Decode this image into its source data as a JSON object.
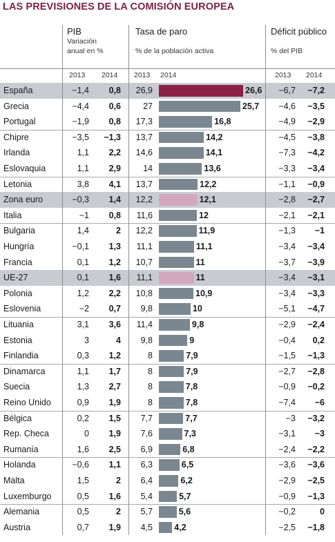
{
  "title": "LAS PREVISIONES DE LA COMISIÓN EUROPEA",
  "headers": {
    "pib": "PIB",
    "pib_sub1": "Variación",
    "pib_sub2": "anual en %",
    "paro": "Tasa de paro",
    "paro_sub": "% de la población activa",
    "deficit": "Déficit público",
    "deficit_sub": "% del PIB",
    "years": [
      "2013",
      "2014"
    ]
  },
  "colors": {
    "title": "#7a1f45",
    "bar_default": "#7a8790",
    "bar_spain": "#8b2045",
    "bar_aggregate": "#d3a8bd",
    "highlight_row": "#c8ccd1"
  },
  "chart_data": {
    "type": "table",
    "title": "LAS PREVISIONES DE LA COMISIÓN EUROPEA",
    "columns": [
      "PIB 2013",
      "PIB 2014",
      "Tasa de paro 2013",
      "Tasa de paro 2014",
      "Déficit público 2013",
      "Déficit público 2014"
    ],
    "bar_column": "Tasa de paro 2014",
    "rows": [
      {
        "country": "España",
        "pib13": "−1,4",
        "pib14": "0,8",
        "paro13": "26,9",
        "paro14": 26.6,
        "paro14_label": "26,6",
        "def13": "−6,7",
        "def14": "−7,2",
        "highlight": true,
        "bar": "spain"
      },
      {
        "country": "Grecia",
        "pib13": "−4,4",
        "pib14": "0,6",
        "paro13": "27",
        "paro14": 25.7,
        "paro14_label": "25,7",
        "def13": "−4,6",
        "def14": "−3,5"
      },
      {
        "country": "Portugal",
        "pib13": "−1,9",
        "pib14": "0,8",
        "paro13": "17,3",
        "paro14": 16.8,
        "paro14_label": "16,8",
        "def13": "−4,9",
        "def14": "−2,9",
        "group_end": true
      },
      {
        "country": "Chipre",
        "pib13": "−3,5",
        "pib14": "−1,3",
        "paro13": "13,7",
        "paro14": 14.2,
        "paro14_label": "14,2",
        "def13": "−4,5",
        "def14": "−3,8"
      },
      {
        "country": "Irlanda",
        "pib13": "1,1",
        "pib14": "2,2",
        "paro13": "14,6",
        "paro14": 14.1,
        "paro14_label": "14,1",
        "def13": "−7,3",
        "def14": "−4,2"
      },
      {
        "country": "Eslovaquia",
        "pib13": "1,1",
        "pib14": "2,9",
        "paro13": "14",
        "paro14": 13.6,
        "paro14_label": "13,6",
        "def13": "−3,3",
        "def14": "−3,4",
        "group_end": true
      },
      {
        "country": "Letonia",
        "pib13": "3,8",
        "pib14": "4,1",
        "paro13": "13,7",
        "paro14": 12.2,
        "paro14_label": "12,2",
        "def13": "−1,1",
        "def14": "−0,9"
      },
      {
        "country": "Zona euro",
        "pib13": "−0,3",
        "pib14": "1,4",
        "paro13": "12,2",
        "paro14": 12.1,
        "paro14_label": "12,1",
        "def13": "−2,8",
        "def14": "−2,7",
        "highlight": true,
        "bar": "pink"
      },
      {
        "country": "Italia",
        "pib13": "−1",
        "pib14": "0,8",
        "paro13": "11,6",
        "paro14": 12,
        "paro14_label": "12",
        "def13": "−2,1",
        "def14": "−2,1",
        "group_end": true
      },
      {
        "country": "Bulgaria",
        "pib13": "1,4",
        "pib14": "2",
        "paro13": "12,2",
        "paro14": 11.9,
        "paro14_label": "11,9",
        "def13": "−1,3",
        "def14": "−1"
      },
      {
        "country": "Hungría",
        "pib13": "−0,1",
        "pib14": "1,3",
        "paro13": "11,1",
        "paro14": 11.1,
        "paro14_label": "11,1",
        "def13": "−3,4",
        "def14": "−3,4"
      },
      {
        "country": "Francia",
        "pib13": "0,1",
        "pib14": "1,2",
        "paro13": "10,7",
        "paro14": 11,
        "paro14_label": "11",
        "def13": "−3,7",
        "def14": "−3,9",
        "group_end": true
      },
      {
        "country": "UE-27",
        "pib13": "0,1",
        "pib14": "1,6",
        "paro13": "11,1",
        "paro14": 11,
        "paro14_label": "11",
        "def13": "−3,4",
        "def14": "−3,1",
        "highlight": true,
        "bar": "pink"
      },
      {
        "country": "Polonia",
        "pib13": "1,2",
        "pib14": "2,2",
        "paro13": "10,8",
        "paro14": 10.9,
        "paro14_label": "10,9",
        "def13": "−3,4",
        "def14": "−3,3"
      },
      {
        "country": "Eslovenia",
        "pib13": "−2",
        "pib14": "0,7",
        "paro13": "9,8",
        "paro14": 10,
        "paro14_label": "10",
        "def13": "−5,1",
        "def14": "−4,7",
        "group_end": true
      },
      {
        "country": "Lituania",
        "pib13": "3,1",
        "pib14": "3,6",
        "paro13": "11,4",
        "paro14": 9.8,
        "paro14_label": "9,8",
        "def13": "−2,9",
        "def14": "−2,4"
      },
      {
        "country": "Estonia",
        "pib13": "3",
        "pib14": "4",
        "paro13": "9,8",
        "paro14": 9,
        "paro14_label": "9",
        "def13": "−0,4",
        "def14": "0,2"
      },
      {
        "country": "Finlandia",
        "pib13": "0,3",
        "pib14": "1,2",
        "paro13": "8",
        "paro14": 7.9,
        "paro14_label": "7,9",
        "def13": "−1,5",
        "def14": "−1,3",
        "group_end": true
      },
      {
        "country": "Dinamarca",
        "pib13": "1,1",
        "pib14": "1,7",
        "paro13": "8",
        "paro14": 7.9,
        "paro14_label": "7,9",
        "def13": "−2,7",
        "def14": "−2,8"
      },
      {
        "country": "Suecia",
        "pib13": "1,3",
        "pib14": "2,7",
        "paro13": "8",
        "paro14": 7.8,
        "paro14_label": "7,8",
        "def13": "−0,9",
        "def14": "−0,2"
      },
      {
        "country": "Reino Unido",
        "pib13": "0,9",
        "pib14": "1,9",
        "paro13": "8",
        "paro14": 7.8,
        "paro14_label": "7,8",
        "def13": "−7,4",
        "def14": "−6",
        "group_end": true
      },
      {
        "country": "Bélgica",
        "pib13": "0,2",
        "pib14": "1,5",
        "paro13": "7,7",
        "paro14": 7.7,
        "paro14_label": "7,7",
        "def13": "−3",
        "def14": "−3,2"
      },
      {
        "country": "Rep. Checa",
        "pib13": "0",
        "pib14": "1,9",
        "paro13": "7,6",
        "paro14": 7.3,
        "paro14_label": "7,3",
        "def13": "−3,1",
        "def14": "−3"
      },
      {
        "country": "Rumanía",
        "pib13": "1,6",
        "pib14": "2,5",
        "paro13": "6,9",
        "paro14": 6.8,
        "paro14_label": "6,8",
        "def13": "−2,4",
        "def14": "−2,2",
        "group_end": true
      },
      {
        "country": "Holanda",
        "pib13": "−0,6",
        "pib14": "1,1",
        "paro13": "6,3",
        "paro14": 6.5,
        "paro14_label": "6,5",
        "def13": "−3,6",
        "def14": "−3,6"
      },
      {
        "country": "Malta",
        "pib13": "1,5",
        "pib14": "2",
        "paro13": "6,4",
        "paro14": 6.2,
        "paro14_label": "6,2",
        "def13": "−2,9",
        "def14": "−2,5"
      },
      {
        "country": "Luxemburgo",
        "pib13": "0,5",
        "pib14": "1,6",
        "paro13": "5,4",
        "paro14": 5.7,
        "paro14_label": "5,7",
        "def13": "−0,9",
        "def14": "−1,3",
        "group_end": true
      },
      {
        "country": "Alemania",
        "pib13": "0,5",
        "pib14": "2",
        "paro13": "5,7",
        "paro14": 5.6,
        "paro14_label": "5,6",
        "def13": "−0,2",
        "def14": "0"
      },
      {
        "country": "Austria",
        "pib13": "0,7",
        "pib14": "1,9",
        "paro13": "4,5",
        "paro14": 4.2,
        "paro14_label": "4,2",
        "def13": "−2,5",
        "def14": "−1,8"
      }
    ]
  }
}
